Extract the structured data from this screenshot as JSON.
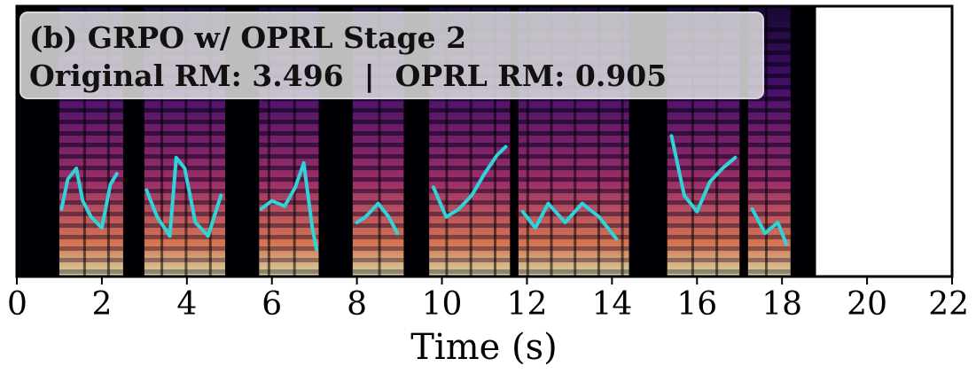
{
  "chart_data": {
    "type": "heatmap",
    "kind": "spectrogram with pitch contour overlay",
    "annotation": {
      "line1": "(b) GRPO w/ OPRL Stage 2",
      "line2": "Original RM: 3.496  |  OPRL RM: 0.905"
    },
    "xlabel": "Time (s)",
    "ylabel": "",
    "xlim": [
      0,
      22
    ],
    "xticks": [
      "0",
      "2",
      "4",
      "6",
      "8",
      "10",
      "12",
      "14",
      "16",
      "18",
      "20",
      "22"
    ],
    "xtick_values": [
      0,
      2,
      4,
      6,
      8,
      10,
      12,
      14,
      16,
      18,
      20,
      22
    ],
    "audio_end_s": 18.8,
    "colormap": "magma",
    "contour_color": "#2fd3d8",
    "voiced_segments": [
      [
        1.0,
        2.5
      ],
      [
        3.0,
        4.9
      ],
      [
        5.7,
        7.1
      ],
      [
        7.9,
        9.1
      ],
      [
        9.7,
        11.6
      ],
      [
        11.8,
        14.4
      ],
      [
        15.3,
        17.0
      ],
      [
        17.2,
        18.2
      ]
    ],
    "pitch_contour": [
      [
        [
          1.05,
          0.25
        ],
        [
          1.2,
          0.36
        ],
        [
          1.4,
          0.4
        ],
        [
          1.55,
          0.28
        ],
        [
          1.75,
          0.22
        ],
        [
          2.0,
          0.18
        ],
        [
          2.2,
          0.34
        ],
        [
          2.35,
          0.38
        ]
      ],
      [
        [
          3.05,
          0.32
        ],
        [
          3.3,
          0.22
        ],
        [
          3.6,
          0.15
        ],
        [
          3.75,
          0.44
        ],
        [
          3.95,
          0.4
        ],
        [
          4.2,
          0.2
        ],
        [
          4.5,
          0.15
        ],
        [
          4.8,
          0.3
        ]
      ],
      [
        [
          5.75,
          0.25
        ],
        [
          6.0,
          0.28
        ],
        [
          6.3,
          0.26
        ],
        [
          6.55,
          0.33
        ],
        [
          6.75,
          0.42
        ],
        [
          6.95,
          0.18
        ],
        [
          7.05,
          0.1
        ]
      ],
      [
        [
          8.0,
          0.2
        ],
        [
          8.2,
          0.22
        ],
        [
          8.5,
          0.27
        ],
        [
          8.75,
          0.22
        ],
        [
          8.95,
          0.16
        ]
      ],
      [
        [
          9.8,
          0.33
        ],
        [
          10.1,
          0.22
        ],
        [
          10.4,
          0.25
        ],
        [
          10.7,
          0.3
        ],
        [
          11.0,
          0.38
        ],
        [
          11.3,
          0.45
        ],
        [
          11.5,
          0.48
        ]
      ],
      [
        [
          11.9,
          0.24
        ],
        [
          12.2,
          0.18
        ],
        [
          12.5,
          0.27
        ],
        [
          12.9,
          0.2
        ],
        [
          13.3,
          0.27
        ],
        [
          13.7,
          0.22
        ],
        [
          14.1,
          0.14
        ]
      ],
      [
        [
          15.4,
          0.52
        ],
        [
          15.7,
          0.3
        ],
        [
          16.0,
          0.24
        ],
        [
          16.3,
          0.35
        ],
        [
          16.6,
          0.4
        ],
        [
          16.9,
          0.44
        ]
      ],
      [
        [
          17.3,
          0.25
        ],
        [
          17.6,
          0.16
        ],
        [
          17.9,
          0.2
        ],
        [
          18.1,
          0.12
        ]
      ]
    ],
    "grid": false
  }
}
